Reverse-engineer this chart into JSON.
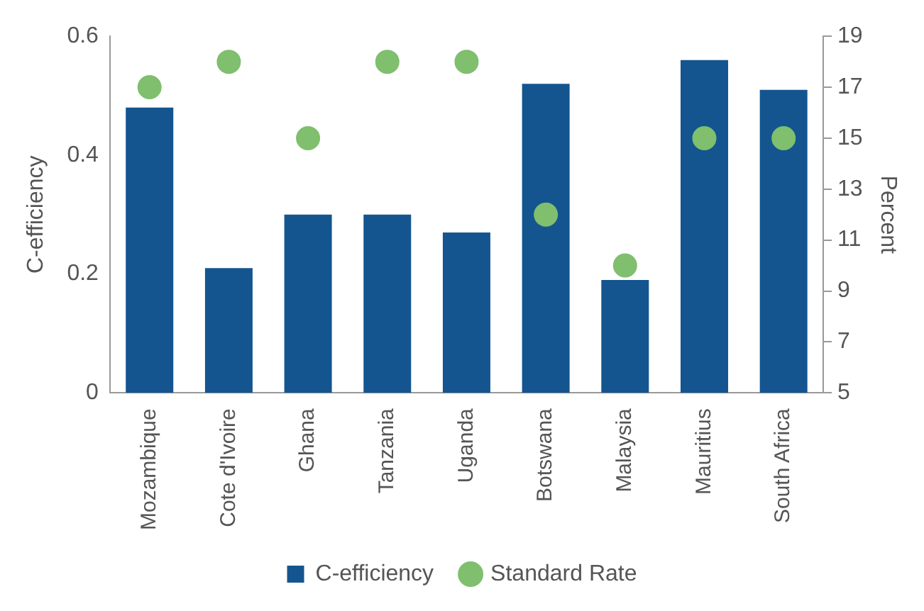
{
  "chart_data": {
    "type": "bar",
    "ylabel": "C-efficiency",
    "y2label": "Percent",
    "categories": [
      "Mozambique",
      "Cote d'Ivoire",
      "Ghana",
      "Tanzania",
      "Uganda",
      "Botswana",
      "Malaysia",
      "Mauritius",
      "South Africa"
    ],
    "series": [
      {
        "name": "C-efficiency",
        "type": "bar",
        "color": "#14558f",
        "values": [
          0.48,
          0.21,
          0.3,
          0.3,
          0.27,
          0.52,
          0.19,
          0.56,
          0.51
        ]
      },
      {
        "name": "Standard Rate",
        "type": "scatter",
        "axis": "y2",
        "color": "#7fbf6e",
        "values": [
          17,
          18,
          15,
          18,
          18,
          12,
          10,
          15,
          15
        ]
      }
    ],
    "ylim": [
      0,
      0.6
    ],
    "yticks": [
      0,
      0.2,
      0.4,
      0.6
    ],
    "y2lim": [
      5,
      19
    ],
    "y2ticks": [
      5,
      7,
      9,
      11,
      13,
      15,
      17,
      19
    ],
    "grid": false,
    "legend": "bottom",
    "marker": "circle"
  }
}
